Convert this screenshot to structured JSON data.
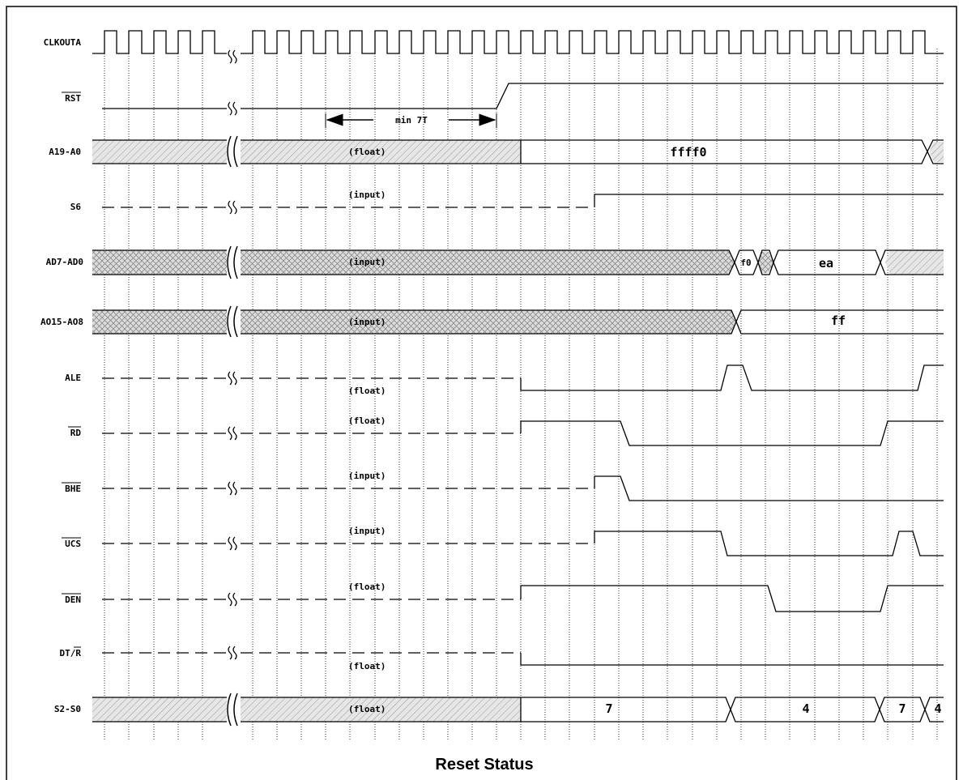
{
  "title": "Reset Status",
  "signals": [
    {
      "id": "clkouta",
      "label": "CLKOUTA",
      "overline": false
    },
    {
      "id": "rst",
      "label": "RST",
      "overline": true
    },
    {
      "id": "a19-a0",
      "label": "A19-A0",
      "overline": false
    },
    {
      "id": "s6",
      "label": "S6",
      "overline": false
    },
    {
      "id": "ad7-ad0",
      "label": "AD7-AD0",
      "overline": false
    },
    {
      "id": "ao15-ao8",
      "label": "AO15-AO8",
      "overline": false
    },
    {
      "id": "ale",
      "label": "ALE",
      "overline": false
    },
    {
      "id": "rd",
      "label": "RD",
      "overline": true
    },
    {
      "id": "bhe",
      "label": "BHE",
      "overline": true
    },
    {
      "id": "ucs",
      "label": "UCS",
      "overline": true
    },
    {
      "id": "den",
      "label": "DEN",
      "overline": true
    },
    {
      "id": "dtr",
      "label": "DT/",
      "suffix": "R",
      "overline": false
    },
    {
      "id": "s2-s0",
      "label": "S2-S0",
      "overline": false
    }
  ],
  "annotations": {
    "min_7t": "min 7T",
    "a19_state": "(float)",
    "s6_state": "(input)",
    "ad7_state": "(input)",
    "ao15_state": "(input)",
    "ale_state": "(float)",
    "rd_state": "(float)",
    "bhe_state": "(input)",
    "ucs_state": "(input)",
    "den_state": "(float)",
    "dtr_state": "(float)",
    "s2_state": "(float)"
  },
  "bus_values": {
    "a19_value": "ffff0",
    "ad7_f0": "f0",
    "ad7_ea": "ea",
    "ao15_value": "ff",
    "s2_7a": "7",
    "s2_4": "4",
    "s2_7b": "7",
    "s2_4b": "4"
  }
}
